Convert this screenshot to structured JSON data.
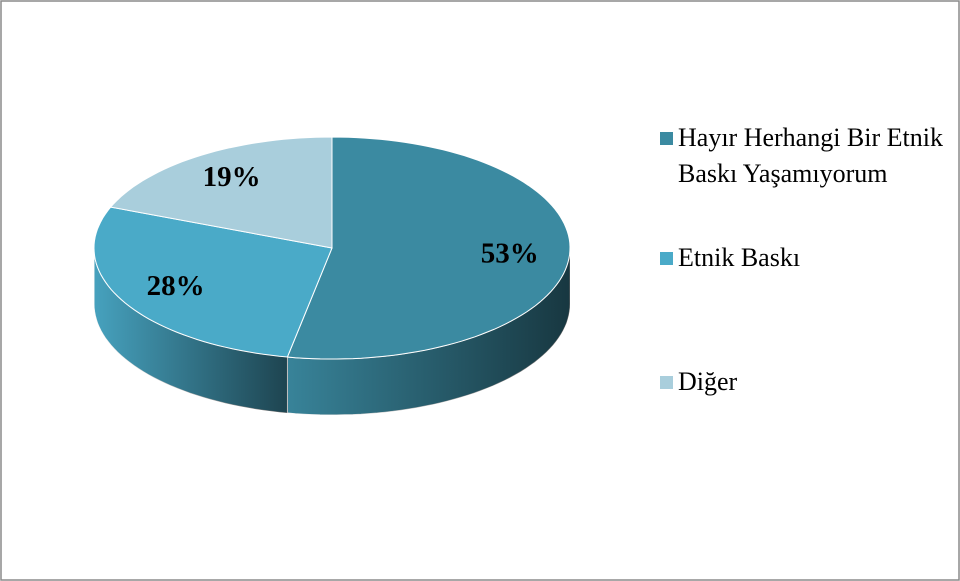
{
  "chart_data": {
    "type": "pie",
    "categories": [
      "Hayır Herhangi Bir Etnik Baskı Yaşamıyorum",
      "Etnik Baskı",
      "Diğer"
    ],
    "values": [
      53,
      28,
      19
    ],
    "value_labels": [
      "53%",
      "28%",
      "19%"
    ],
    "colors": [
      "#3b8aa1",
      "#4aaac8",
      "#a9cedc"
    ]
  }
}
